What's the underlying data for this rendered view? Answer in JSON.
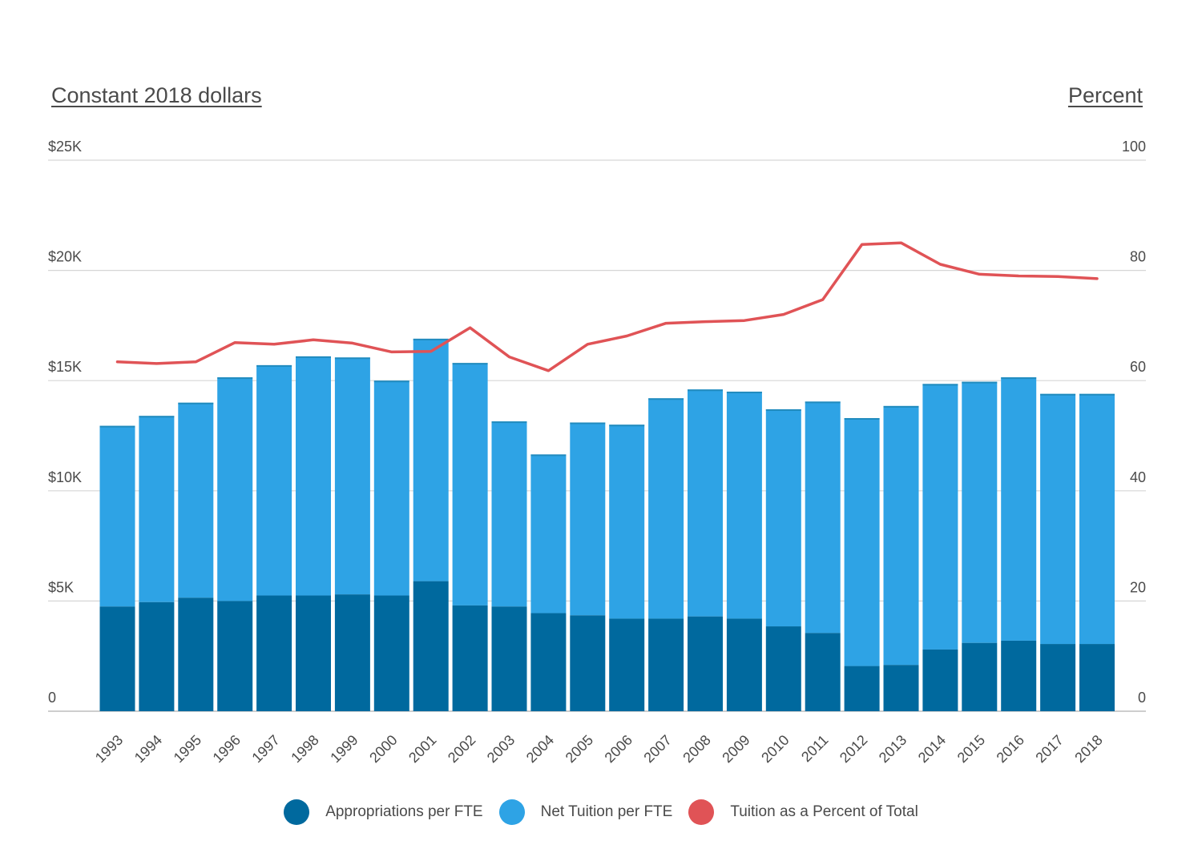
{
  "chart_data": {
    "type": "bar",
    "stacked": true,
    "left_axis_title": "Constant 2018 dollars",
    "right_axis_title": "Percent",
    "categories": [
      "1993",
      "1994",
      "1995",
      "1996",
      "1997",
      "1998",
      "1999",
      "2000",
      "2001",
      "2002",
      "2003",
      "2004",
      "2005",
      "2006",
      "2007",
      "2008",
      "2009",
      "2010",
      "2011",
      "2012",
      "2013",
      "2014",
      "2015",
      "2016",
      "2017",
      "2018"
    ],
    "series": [
      {
        "name": "Appropriations per FTE",
        "type": "bar",
        "axis": "left",
        "color": "#00699e",
        "values": [
          4750,
          4950,
          5150,
          5000,
          5250,
          5250,
          5300,
          5250,
          5900,
          4800,
          4750,
          4450,
          4350,
          4200,
          4200,
          4300,
          4200,
          3850,
          3550,
          2050,
          2100,
          2800,
          3100,
          3200,
          3050,
          3050
        ]
      },
      {
        "name": "Net Tuition per FTE",
        "type": "bar",
        "axis": "left",
        "color": "#2ea3e5",
        "values": [
          8200,
          8450,
          8850,
          10150,
          10450,
          10850,
          10750,
          9750,
          11000,
          11000,
          8400,
          7200,
          8750,
          8800,
          10000,
          10300,
          10300,
          9850,
          10500,
          11250,
          11750,
          12050,
          11850,
          11950,
          11350,
          11350
        ]
      },
      {
        "name": "Tuition as a Percent of Total",
        "type": "line",
        "axis": "right",
        "color": "#e05356",
        "values": [
          63.4,
          63.1,
          63.4,
          66.9,
          66.6,
          67.4,
          66.8,
          65.2,
          65.3,
          69.6,
          64.3,
          61.8,
          66.6,
          68.1,
          70.4,
          70.7,
          70.9,
          72.0,
          74.7,
          84.7,
          85.0,
          81.1,
          79.3,
          79.0,
          78.9,
          78.5
        ]
      }
    ],
    "y_left": {
      "ylim": [
        0,
        25000
      ],
      "tick_values": [
        0,
        5000,
        10000,
        15000,
        20000,
        25000
      ],
      "tick_labels": [
        "0",
        "$5K",
        "$10K",
        "$15K",
        "$20K",
        "$25K"
      ]
    },
    "y_right": {
      "ylim": [
        0,
        100
      ],
      "tick_labels": [
        "0",
        "20",
        "40",
        "60",
        "80",
        "100"
      ]
    },
    "grid": true,
    "legend_position": "bottom"
  },
  "legend": [
    {
      "label": "Appropriations per FTE",
      "color": "#00699e"
    },
    {
      "label": "Net Tuition per FTE",
      "color": "#2ea3e5"
    },
    {
      "label": "Tuition as a Percent of Total",
      "color": "#e05356"
    }
  ]
}
